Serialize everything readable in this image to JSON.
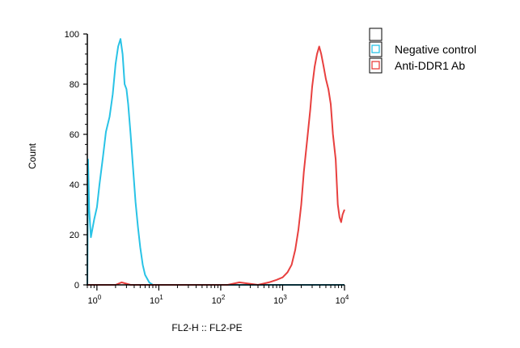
{
  "chart_data": {
    "type": "line",
    "title": "",
    "xlabel": "FL2-H :: FL2-PE",
    "ylabel": "Count",
    "x_scale": "log",
    "xlim": [
      0.7,
      10000
    ],
    "ylim": [
      0,
      100
    ],
    "x_ticks": [
      {
        "value": 1,
        "base": "10",
        "exp": "0"
      },
      {
        "value": 10,
        "base": "10",
        "exp": "1"
      },
      {
        "value": 100,
        "base": "10",
        "exp": "2"
      },
      {
        "value": 1000,
        "base": "10",
        "exp": "3"
      },
      {
        "value": 10000,
        "base": "10",
        "exp": "4"
      }
    ],
    "y_ticks": [
      "0",
      "20",
      "40",
      "60",
      "80",
      "100"
    ],
    "grid": false,
    "legend_position": "top-right, outside plot",
    "legend_header": "",
    "series": [
      {
        "name": "Negative control",
        "color": "#29c3e6",
        "points": [
          [
            0.7,
            0
          ],
          [
            0.72,
            50
          ],
          [
            0.75,
            30
          ],
          [
            0.8,
            19
          ],
          [
            0.9,
            26
          ],
          [
            1.0,
            31
          ],
          [
            1.1,
            40
          ],
          [
            1.25,
            51
          ],
          [
            1.4,
            61
          ],
          [
            1.6,
            67
          ],
          [
            1.8,
            76
          ],
          [
            2.0,
            88
          ],
          [
            2.2,
            95
          ],
          [
            2.4,
            98
          ],
          [
            2.6,
            92
          ],
          [
            2.8,
            80
          ],
          [
            3.0,
            78
          ],
          [
            3.2,
            72
          ],
          [
            3.5,
            60
          ],
          [
            3.8,
            48
          ],
          [
            4.2,
            33
          ],
          [
            4.6,
            23
          ],
          [
            5.0,
            15
          ],
          [
            5.5,
            8
          ],
          [
            6.0,
            4
          ],
          [
            7.0,
            1
          ],
          [
            8.0,
            0
          ],
          [
            10,
            0
          ],
          [
            100,
            0
          ],
          [
            10000,
            0
          ]
        ]
      },
      {
        "name": "Anti-DDR1 Ab",
        "color": "#e8403f",
        "points": [
          [
            0.7,
            0
          ],
          [
            1.0,
            0
          ],
          [
            1.3,
            0
          ],
          [
            2.0,
            0
          ],
          [
            2.5,
            1
          ],
          [
            3.5,
            0
          ],
          [
            10,
            0
          ],
          [
            130,
            0
          ],
          [
            200,
            1
          ],
          [
            400,
            0
          ],
          [
            600,
            1
          ],
          [
            800,
            2
          ],
          [
            1000,
            3
          ],
          [
            1200,
            5
          ],
          [
            1400,
            8
          ],
          [
            1600,
            14
          ],
          [
            1800,
            22
          ],
          [
            2000,
            32
          ],
          [
            2200,
            45
          ],
          [
            2500,
            58
          ],
          [
            2800,
            70
          ],
          [
            3000,
            79
          ],
          [
            3300,
            87
          ],
          [
            3600,
            92
          ],
          [
            3900,
            95
          ],
          [
            4200,
            92
          ],
          [
            4600,
            87
          ],
          [
            5000,
            82
          ],
          [
            5500,
            78
          ],
          [
            6000,
            72
          ],
          [
            6500,
            60
          ],
          [
            7200,
            50
          ],
          [
            7800,
            32
          ],
          [
            8300,
            27
          ],
          [
            8800,
            25
          ],
          [
            9300,
            28
          ],
          [
            10000,
            30
          ]
        ]
      }
    ]
  }
}
